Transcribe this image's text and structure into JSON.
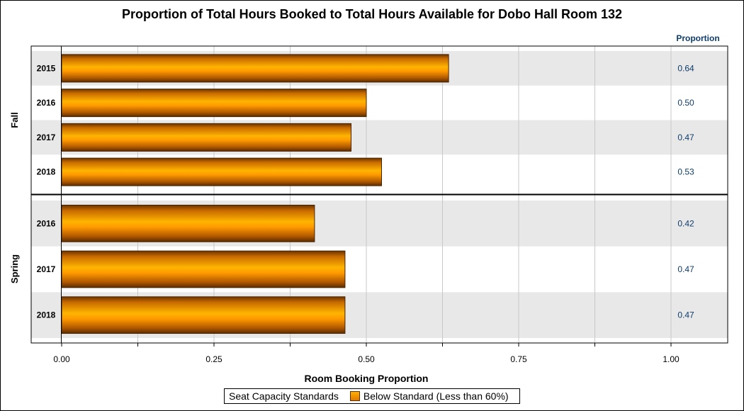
{
  "title": "Proportion of Total Hours Booked to Total Hours Available for Dobo Hall Room 132",
  "chart_data": {
    "type": "bar",
    "orientation": "horizontal",
    "title": "Proportion of Total Hours Booked to Total Hours Available for Dobo Hall Room 132",
    "xlabel": "Room Booking Proportion",
    "stat_column_header": "Proportion",
    "xlim": [
      0,
      1.0
    ],
    "xticks": [
      "0.00",
      "0.25",
      "0.50",
      "0.75",
      "1.00"
    ],
    "xtick_values": [
      0,
      0.25,
      0.5,
      0.75,
      1.0
    ],
    "grid": true,
    "groups": [
      {
        "name": "Fall",
        "categories": [
          "2015",
          "2016",
          "2017",
          "2018"
        ],
        "values": [
          0.635,
          0.5,
          0.475,
          0.525
        ],
        "labels": [
          "0.64",
          "0.50",
          "0.47",
          "0.53"
        ]
      },
      {
        "name": "Spring",
        "categories": [
          "2016",
          "2017",
          "2018"
        ],
        "values": [
          0.415,
          0.465,
          0.465
        ],
        "labels": [
          "0.42",
          "0.47",
          "0.47"
        ]
      }
    ],
    "bar_color": "#ff9900",
    "band_color": "#e8e8e8",
    "stat_color": "#0f3d6b",
    "legend": {
      "title": "Seat Capacity Standards",
      "entries": [
        {
          "label": "Below Standard (Less than 60%)",
          "color": "#ff9900"
        }
      ],
      "placement": "bottom"
    }
  }
}
